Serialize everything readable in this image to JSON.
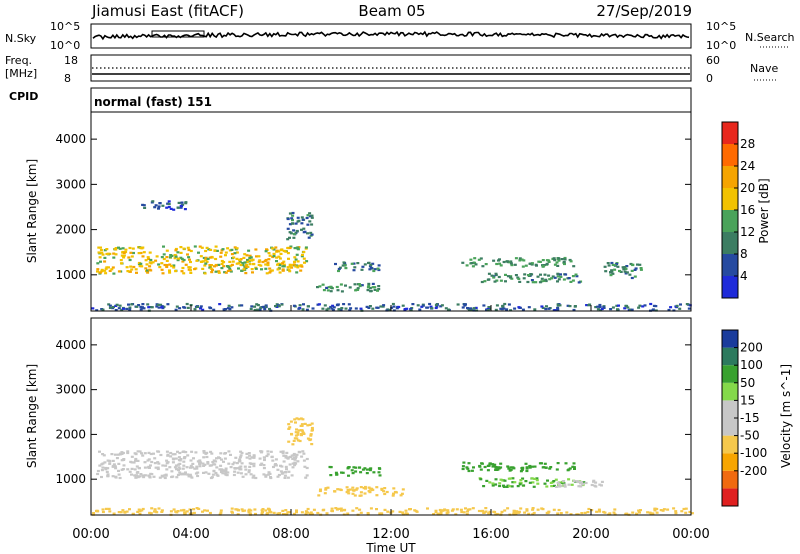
{
  "header": {
    "station": "Jiamusi East (fitACF)",
    "beam": "Beam 05",
    "date": "27/Sep/2019"
  },
  "noise_panel": {
    "left_label": "N.Sky",
    "left_ticks": [
      "10^5",
      "10^0"
    ],
    "right_label": "N.Search",
    "right_ticks": [
      "10^5",
      "10^0"
    ]
  },
  "freq_panel": {
    "left_label_1": "Freq.",
    "left_label_2": "[MHz]",
    "left_ticks": [
      "18",
      "8"
    ],
    "right_label": "Nave",
    "right_ticks": [
      "60",
      "0"
    ]
  },
  "cpid_panel": {
    "label": "CPID",
    "mode": "normal (fast) 151"
  },
  "time_axis": {
    "ticks": [
      "00:00",
      "04:00",
      "08:00",
      "12:00",
      "16:00",
      "20:00",
      "00:00"
    ],
    "label": "Time UT"
  },
  "colors": {
    "power_scale": [
      "#1f2bd9",
      "#264aa0",
      "#3c7d62",
      "#4aa35a",
      "#f2c200",
      "#f5a400",
      "#ff6a00",
      "#e8271d"
    ],
    "velocity_scale": [
      "#e02020",
      "#f06a10",
      "#f7a500",
      "#f5c84c",
      "#c7c7c7",
      "#c7c7c7",
      "#84d94a",
      "#38a12f",
      "#2c7a5e",
      "#1a3c9c"
    ]
  },
  "chart_data": [
    {
      "type": "heatmap",
      "title": "Power",
      "ylabel": "Slant Range [km]",
      "yticks": [
        "1000",
        "2000",
        "3000",
        "4000"
      ],
      "ylim": [
        200,
        4600
      ],
      "xlim": [
        0,
        24
      ],
      "colorbar_label": "Power [dB]",
      "colorbar_ticks": [
        "4",
        "8",
        "12",
        "16",
        "20",
        "24",
        "28"
      ],
      "colorbar_range": [
        0,
        30
      ],
      "regions": [
        {
          "t0": 0.2,
          "t1": 8.6,
          "r0": 1050,
          "r1": 1650,
          "value": 18
        },
        {
          "t0": 2.0,
          "t1": 3.8,
          "r0": 2450,
          "r1": 2650,
          "value": 6
        },
        {
          "t0": 7.8,
          "t1": 8.8,
          "r0": 1800,
          "r1": 2400,
          "value": 9
        },
        {
          "t0": 9.5,
          "t1": 11.5,
          "r0": 1100,
          "r1": 1300,
          "value": 9
        },
        {
          "t0": 9.0,
          "t1": 11.5,
          "r0": 650,
          "r1": 850,
          "value": 11
        },
        {
          "t0": 14.8,
          "t1": 19.3,
          "r0": 1200,
          "r1": 1400,
          "value": 12
        },
        {
          "t0": 15.5,
          "t1": 19.7,
          "r0": 850,
          "r1": 1050,
          "value": 11
        },
        {
          "t0": 20.5,
          "t1": 22.0,
          "r0": 950,
          "r1": 1300,
          "value": 10
        },
        {
          "t0": 0.0,
          "t1": 24.0,
          "r0": 230,
          "r1": 380,
          "value": 7
        }
      ]
    },
    {
      "type": "heatmap",
      "title": "Velocity",
      "ylabel": "Slant Range [km]",
      "yticks": [
        "1000",
        "2000",
        "3000",
        "4000"
      ],
      "ylim": [
        200,
        4600
      ],
      "xlim": [
        0,
        24
      ],
      "colorbar_label": "Velocity [m s^-1]",
      "colorbar_ticks": [
        "200",
        "100",
        "50",
        "15",
        "-15",
        "-50",
        "-100",
        "-200"
      ],
      "colorbar_range": [
        -250,
        250
      ],
      "regions": [
        {
          "t0": 0.2,
          "t1": 8.6,
          "r0": 1050,
          "r1": 1650,
          "value": 0
        },
        {
          "t0": 7.8,
          "t1": 8.8,
          "r0": 1800,
          "r1": 2400,
          "value": -40
        },
        {
          "t0": 9.5,
          "t1": 11.5,
          "r0": 1100,
          "r1": 1300,
          "value": 60
        },
        {
          "t0": 9.0,
          "t1": 12.5,
          "r0": 650,
          "r1": 850,
          "value": -45
        },
        {
          "t0": 14.8,
          "t1": 19.3,
          "r0": 1200,
          "r1": 1400,
          "value": 60
        },
        {
          "t0": 15.5,
          "t1": 19.7,
          "r0": 850,
          "r1": 1050,
          "value": 50
        },
        {
          "t0": 18.5,
          "t1": 20.5,
          "r0": 850,
          "r1": 1000,
          "value": 0
        },
        {
          "t0": 0.0,
          "t1": 24.0,
          "r0": 230,
          "r1": 380,
          "value": -30
        }
      ]
    }
  ]
}
